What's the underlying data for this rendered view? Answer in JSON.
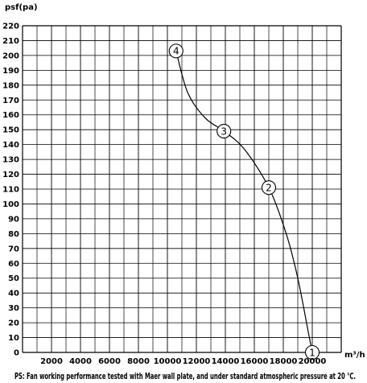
{
  "chart_data": {
    "type": "line",
    "ylabel": "psf(pa)",
    "xlabel": "m³/h",
    "xlim": [
      0,
      22000
    ],
    "ylim": [
      0,
      220
    ],
    "x_ticks": [
      2000,
      4000,
      6000,
      8000,
      10000,
      12000,
      14000,
      16000,
      18000,
      20000
    ],
    "x_tick_labels": [
      "2000",
      "4000",
      "6000",
      "8000",
      "10000",
      "12000",
      "14000",
      "16000",
      "18000",
      "20000"
    ],
    "y_ticks": [
      0,
      10,
      20,
      30,
      40,
      50,
      60,
      70,
      80,
      90,
      100,
      110,
      120,
      130,
      140,
      150,
      160,
      170,
      180,
      190,
      200,
      210,
      220
    ],
    "y_tick_labels": [
      "0",
      "10",
      "20",
      "30",
      "40",
      "50",
      "60",
      "70",
      "80",
      "90",
      "100",
      "110",
      "120",
      "130",
      "140",
      "150",
      "160",
      "170",
      "180",
      "190",
      "200",
      "210",
      "220"
    ],
    "grid": true,
    "x_grid_step": 1000,
    "y_grid_step": 10,
    "series": [
      {
        "color": "#000000",
        "points": [
          {
            "x": 10600,
            "y": 203,
            "label": "4"
          },
          {
            "x": 11400,
            "y": 175
          },
          {
            "x": 12600,
            "y": 158
          },
          {
            "x": 13900,
            "y": 149,
            "label": "3"
          },
          {
            "x": 15300,
            "y": 137
          },
          {
            "x": 17000,
            "y": 111,
            "label": "2"
          },
          {
            "x": 18200,
            "y": 80
          },
          {
            "x": 19000,
            "y": 50
          },
          {
            "x": 19700,
            "y": 15
          },
          {
            "x": 20000,
            "y": 0,
            "label": "1"
          }
        ]
      }
    ],
    "note": "PS: Fan working performance tested with Maer wall plate, and under standard atmospheric pressure at 20 ℃."
  }
}
